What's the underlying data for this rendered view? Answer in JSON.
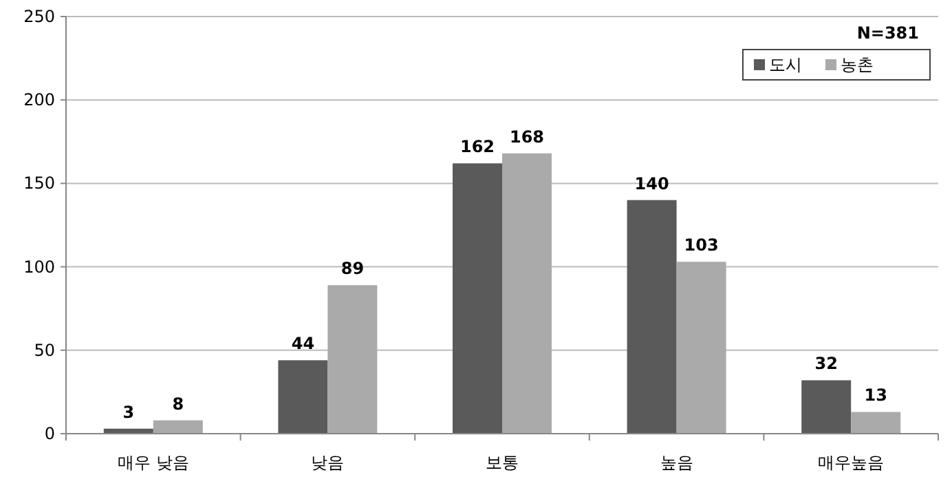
{
  "chart_data": {
    "type": "bar",
    "categories": [
      "매우 낮음",
      "낮음",
      "보통",
      "높음",
      "매우높음"
    ],
    "series": [
      {
        "name": "도시",
        "color": "#5a5a5a",
        "values": [
          3,
          44,
          162,
          140,
          32
        ]
      },
      {
        "name": "농촌",
        "color": "#aaaaaa",
        "values": [
          8,
          89,
          168,
          103,
          13
        ]
      }
    ],
    "ylim": [
      0,
      250
    ],
    "yticks": [
      0,
      50,
      100,
      150,
      200,
      250
    ],
    "grid": "y",
    "legend": "top right",
    "data_labels": true,
    "annotations": [
      "N=381"
    ]
  }
}
